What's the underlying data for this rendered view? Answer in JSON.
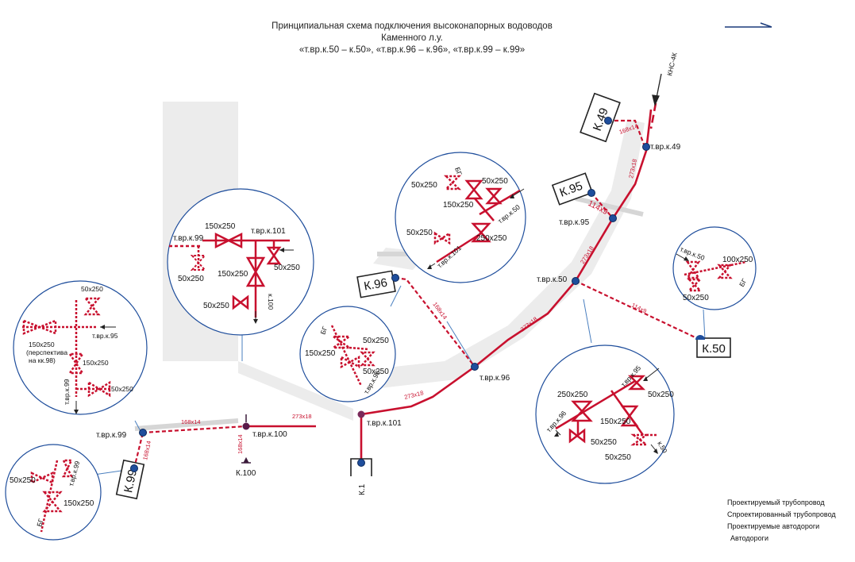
{
  "title": {
    "line1": "Принципиальная схема подключения высоконапорных  водоводов",
    "line2": "Каменного л.у.",
    "line3": "«т.вр.к.50 – к.50», «т.вр.к.96 – к.96», «т.вр.к.99 – к.99»"
  },
  "nodes": {
    "khs": "КНС-4К",
    "k49": "К.49",
    "k95": "К.95",
    "k96": "К.96",
    "k50": "К.50",
    "k99": "К.99",
    "k1": "К.1",
    "k100": "К.100",
    "tvrk49": "т.вр.к.49",
    "tvrk95": "т.вр.к.95",
    "tvrk50": "т.вр.к.50",
    "tvrk96": "т.вр.к.96",
    "tvrk101": "т.вр.к.101",
    "tvrk99": "т.вр.к.99",
    "tvrk100": "т.вр.к.100"
  },
  "pipes": {
    "p168x14": "168x14",
    "p273x18": "273x18",
    "p114x9": "114x9"
  },
  "detail_left": {
    "t1": "50x250",
    "t2": "т.вр.к.95",
    "t3": "150x250",
    "t4": "(перспектива",
    "t5": "на кк.98)",
    "t6": "150x250",
    "t7": "50x250",
    "t8": "т.вр.к.99"
  },
  "detail_bl": {
    "t1": "50x250",
    "t2": "150x250",
    "t3": "т.вр.к.99",
    "t4": "БГ"
  },
  "detail_101": {
    "t1": "150x250",
    "t2": "т.вр.к.101",
    "t3": "т.вр.к.99",
    "t4": "50x250",
    "t5": "50x250",
    "t6": "150x250",
    "t7": "50x250",
    "t8": "к.100"
  },
  "detail_96": {
    "t1": "150x250",
    "t2": "50x250",
    "t3": "50x250",
    "t4": "БГ",
    "t5": "т.вр.к.96"
  },
  "detail_top": {
    "t1": "50x250",
    "t2": "50x250",
    "t3": "150x250",
    "t4": "50x250",
    "t5": "250x250",
    "t6": "БГ",
    "t7": "т.вр.к.50",
    "t8": "т.вр.к.101"
  },
  "detail_right": {
    "t1": "т.вр.к.50",
    "t2": "100x250",
    "t3": "50x250",
    "t4": "БГ"
  },
  "detail_br": {
    "t1": "250x250",
    "t2": "50x250",
    "t3": "150x250",
    "t4": "50x250",
    "t5": "50x250",
    "t6": "т.вр.к.95",
    "t7": "т.вр.к.96",
    "t8": "к.50"
  },
  "legend": [
    "Проектируемый трубопровод",
    "Спроектированный трубопровод",
    "Проектируемые автодороги",
    "Автодороги"
  ],
  "colors": {
    "pipeline": "#c8102e",
    "node": "#1f4e9c",
    "callout": "#4a7fbf",
    "road": "#ececec"
  }
}
